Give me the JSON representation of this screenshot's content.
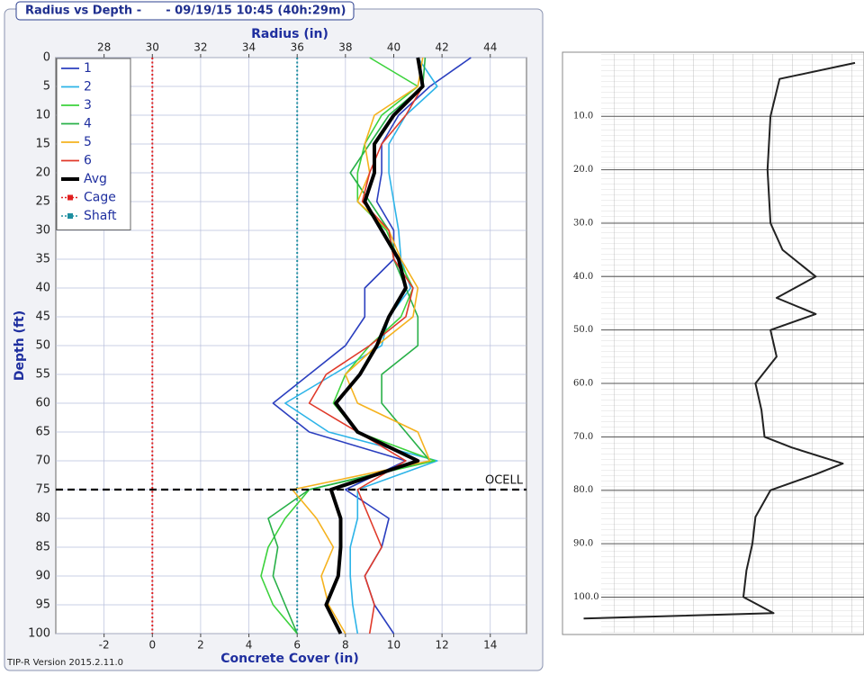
{
  "chart_data": [
    {
      "type": "line",
      "title": "Radius vs Depth -      - 09/19/15 10:45 (40h:29m)",
      "x_title": "Radius (in)",
      "x2_title": "Concrete Cover (in)",
      "y_title": "Depth (ft)",
      "footer": "TIP-R Version 2015.2.11.0",
      "xlim": [
        26,
        45.5
      ],
      "xticks": [
        28,
        30,
        32,
        34,
        36,
        38,
        40,
        42,
        44
      ],
      "x2lim": [
        -4,
        15.5
      ],
      "x2ticks": [
        -2,
        0,
        2,
        4,
        6,
        8,
        10,
        12,
        14
      ],
      "ylim": [
        0,
        100
      ],
      "yticks": [
        0,
        5,
        10,
        15,
        20,
        25,
        30,
        35,
        40,
        45,
        50,
        55,
        60,
        65,
        70,
        75,
        80,
        85,
        90,
        95,
        100
      ],
      "y_inverted": true,
      "grid": true,
      "depths": [
        0,
        5,
        10,
        15,
        20,
        25,
        30,
        35,
        40,
        45,
        50,
        55,
        60,
        65,
        70,
        75,
        80,
        85,
        90,
        95,
        100
      ],
      "series": [
        {
          "name": "1",
          "color": "#2b3fbf",
          "values": [
            43.2,
            41.5,
            40.2,
            39.5,
            39.5,
            39.3,
            40,
            40,
            38.8,
            38.8,
            38,
            36.5,
            35,
            36.5,
            40.5,
            38,
            39.8,
            39.5,
            38.8,
            39.2,
            40
          ]
        },
        {
          "name": "2",
          "color": "#2db4e8",
          "values": [
            41,
            41.8,
            40.5,
            39.8,
            39.8,
            40,
            40.2,
            40.3,
            40.7,
            39.8,
            39.5,
            37.5,
            35.5,
            37.3,
            41.8,
            38.5,
            38.5,
            38.2,
            38.2,
            38.3,
            38.5
          ]
        },
        {
          "name": "3",
          "color": "#3cd23c",
          "values": [
            39,
            41,
            39.5,
            38.8,
            38.5,
            38.5,
            39.7,
            40.2,
            40.8,
            40.3,
            39,
            38,
            37.5,
            38.5,
            41.7,
            36.5,
            35.5,
            34.8,
            34.5,
            35,
            36
          ]
        },
        {
          "name": "4",
          "color": "#28b048",
          "values": [
            41.3,
            41.2,
            39.8,
            39,
            38.2,
            39,
            39.8,
            40,
            40.5,
            41,
            41,
            39.5,
            39.5,
            40.5,
            41.5,
            36.5,
            34.8,
            35.2,
            35,
            35.5,
            36
          ]
        },
        {
          "name": "5",
          "color": "#f5b21e",
          "values": [
            41.2,
            41,
            39.2,
            38.8,
            39,
            38.5,
            39.8,
            40.3,
            41,
            40.8,
            39.3,
            38,
            38.5,
            41,
            41.5,
            35.8,
            36.8,
            37.5,
            37,
            37.3,
            38
          ]
        },
        {
          "name": "6",
          "color": "#e03a2a",
          "values": [
            41,
            41.2,
            40.5,
            39.5,
            39,
            38.7,
            39.8,
            40,
            40.8,
            40.5,
            39,
            37.2,
            36.5,
            38.5,
            40.5,
            38.5,
            39,
            39.5,
            38.8,
            39.2,
            39
          ]
        },
        {
          "name": "Avg",
          "color": "#000000",
          "values": [
            41,
            41.2,
            40,
            39.2,
            39.2,
            38.8,
            39.5,
            40.2,
            40.5,
            39.8,
            39.3,
            38.6,
            37.6,
            38.5,
            41,
            37.4,
            37.8,
            37.8,
            37.7,
            37.2,
            37.8
          ]
        }
      ],
      "reference_lines": [
        {
          "name": "Cage",
          "color": "#e02020",
          "radius": 30
        },
        {
          "name": "Shaft",
          "color": "#1e8fa0",
          "radius": 36
        }
      ],
      "marker": {
        "label": "OCELL",
        "depth": 75
      }
    },
    {
      "type": "trace",
      "xlim": [
        0,
        100
      ],
      "ylim": [
        -2,
        107
      ],
      "yticks": [
        {
          "value": 10,
          "label": "10.0"
        },
        {
          "value": 20,
          "label": "20.0"
        },
        {
          "value": 30,
          "label": "30.0"
        },
        {
          "value": 40,
          "label": "40.0"
        },
        {
          "value": 50,
          "label": "50.0"
        },
        {
          "value": 60,
          "label": "60.0"
        },
        {
          "value": 70,
          "label": "70.0"
        },
        {
          "value": 80,
          "label": "80.0"
        },
        {
          "value": 90,
          "label": "90.0"
        },
        {
          "value": 100,
          "label": "100.0"
        }
      ],
      "depths": [
        0,
        3,
        10,
        20,
        30,
        35,
        40,
        44,
        47,
        50,
        55,
        60,
        65,
        70,
        72,
        75,
        77,
        80,
        85,
        90,
        95,
        100,
        103,
        104
      ],
      "values": [
        97,
        72,
        69,
        68,
        69,
        73,
        84,
        71,
        84,
        69,
        71,
        64,
        66,
        67,
        76,
        93,
        84,
        69,
        64,
        63,
        61,
        60,
        70,
        7
      ],
      "color": "#222222"
    }
  ]
}
